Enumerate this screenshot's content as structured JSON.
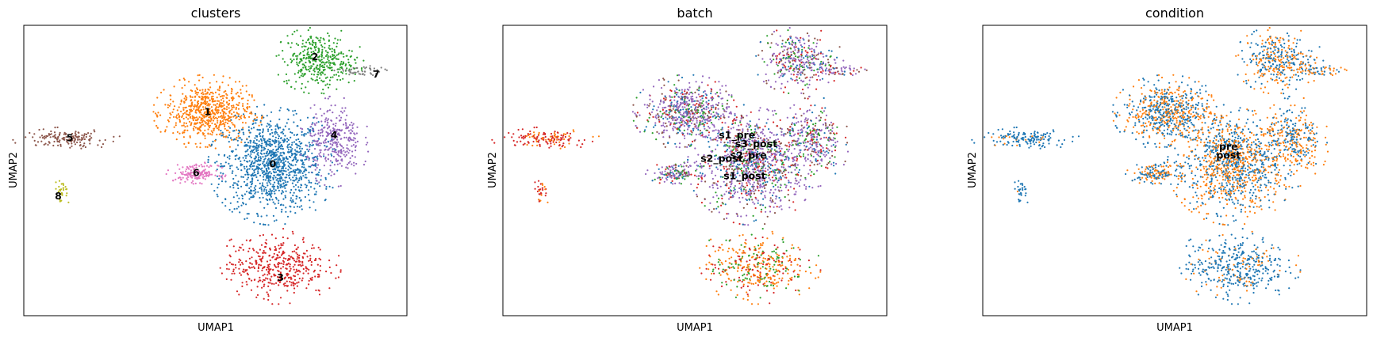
{
  "chart_data": [
    {
      "type": "scatter",
      "title": "clusters",
      "xlabel": "UMAP1",
      "ylabel": "UMAP2",
      "xlim": [
        0,
        100
      ],
      "ylim": [
        0,
        100
      ],
      "legend": "on data",
      "groups": [
        {
          "name": "0",
          "color": "#1f77b4",
          "cx": 65,
          "cy": 52,
          "rx": 13,
          "ry": 16,
          "n": 1100,
          "label_at": [
            65,
            52
          ]
        },
        {
          "name": "1",
          "color": "#ff7f0e",
          "cx": 48,
          "cy": 70,
          "rx": 11,
          "ry": 10,
          "n": 650,
          "label_at": [
            48,
            70
          ]
        },
        {
          "name": "2",
          "color": "#2ca02c",
          "cx": 77,
          "cy": 88,
          "rx": 9,
          "ry": 9,
          "n": 380,
          "label_at": [
            76,
            89
          ]
        },
        {
          "name": "3",
          "color": "#d62728",
          "cx": 66,
          "cy": 17,
          "rx": 13,
          "ry": 10,
          "n": 420,
          "label_at": [
            67,
            13
          ]
        },
        {
          "name": "4",
          "color": "#9467bd",
          "cx": 81,
          "cy": 60,
          "rx": 7,
          "ry": 12,
          "n": 330,
          "label_at": [
            81,
            62
          ]
        },
        {
          "name": "5",
          "color": "#8c564b",
          "cx": 11,
          "cy": 61,
          "rx": 11,
          "ry": 3,
          "n": 150,
          "label_at": [
            12,
            61
          ]
        },
        {
          "name": "6",
          "color": "#e377c2",
          "cx": 45,
          "cy": 49,
          "rx": 6,
          "ry": 3,
          "n": 150,
          "label_at": [
            45,
            49
          ]
        },
        {
          "name": "7",
          "color": "#7f7f7f",
          "cx": 88,
          "cy": 84,
          "rx": 6,
          "ry": 2,
          "n": 50,
          "label_at": [
            92,
            83
          ]
        },
        {
          "name": "8",
          "color": "#bcbd22",
          "cx": 10,
          "cy": 43,
          "rx": 2,
          "ry": 4,
          "n": 30,
          "label_at": [
            9,
            41
          ]
        }
      ]
    },
    {
      "type": "scatter",
      "title": "batch",
      "xlabel": "UMAP1",
      "ylabel": "UMAP2",
      "xlim": [
        0,
        100
      ],
      "ylim": [
        0,
        100
      ],
      "legend": "on data",
      "groups": [
        {
          "name": "s1_pre",
          "color": "#1f77b4",
          "label_at": [
            61,
            62
          ]
        },
        {
          "name": "s3_post",
          "color": "#d62728",
          "label_at": [
            66,
            59
          ]
        },
        {
          "name": "s2_post",
          "color": "#2ca02c",
          "label_at": [
            57,
            54
          ]
        },
        {
          "name": "s2_pre",
          "color": "#ff7f0e",
          "label_at": [
            64,
            55
          ]
        },
        {
          "name": "s1_post",
          "color": "#9467bd",
          "label_at": [
            63,
            48
          ]
        }
      ],
      "palette": [
        "#1f77b4",
        "#ff7f0e",
        "#2ca02c",
        "#d62728",
        "#9467bd",
        "#8c564b"
      ]
    },
    {
      "type": "scatter",
      "title": "condition",
      "xlabel": "UMAP1",
      "ylabel": "UMAP2",
      "xlim": [
        0,
        100
      ],
      "ylim": [
        0,
        100
      ],
      "legend": "on data",
      "groups": [
        {
          "name": "pre",
          "color": "#1f77b4",
          "label_at": [
            64,
            58
          ]
        },
        {
          "name": "post",
          "color": "#ff7f0e",
          "label_at": [
            64,
            55
          ]
        }
      ]
    }
  ]
}
